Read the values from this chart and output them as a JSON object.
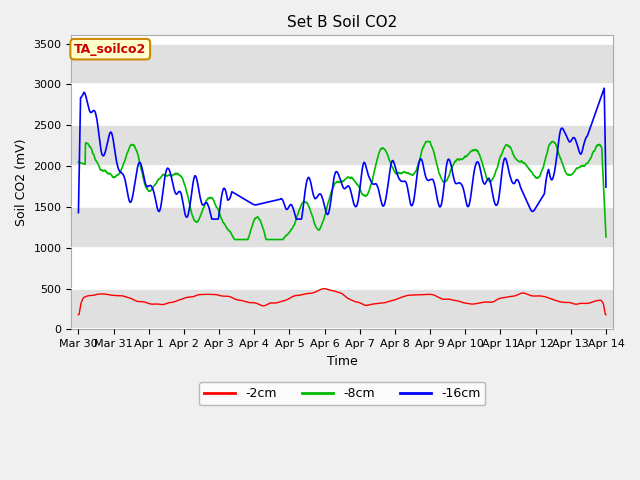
{
  "title": "Set B Soil CO2",
  "ylabel": "Soil CO2 (mV)",
  "xlabel": "Time",
  "ylim": [
    0,
    3600
  ],
  "yticks": [
    0,
    500,
    1000,
    1500,
    2000,
    2500,
    3000,
    3500
  ],
  "xtick_labels": [
    "Mar 30",
    "Mar 31",
    "Apr 1",
    "Apr 2",
    "Apr 3",
    "Apr 4",
    "Apr 5",
    "Apr 6",
    "Apr 7",
    "Apr 8",
    "Apr 9",
    "Apr 10",
    "Apr 11",
    "Apr 12",
    "Apr 13",
    "Apr 14"
  ],
  "xtick_positions": [
    0,
    1,
    2,
    3,
    4,
    5,
    6,
    7,
    8,
    9,
    10,
    11,
    12,
    13,
    14,
    15
  ],
  "legend_label": "TA_soilco2",
  "series_labels": [
    "-2cm",
    "-8cm",
    "-16cm"
  ],
  "series_colors": [
    "#ff0000",
    "#00bb00",
    "#0000ff"
  ],
  "bg_color": "#ffffff",
  "stripe_color": "#e0e0e0",
  "fig_bg": "#f0f0f0",
  "title_fontsize": 11,
  "axis_label_fontsize": 9,
  "tick_fontsize": 8
}
